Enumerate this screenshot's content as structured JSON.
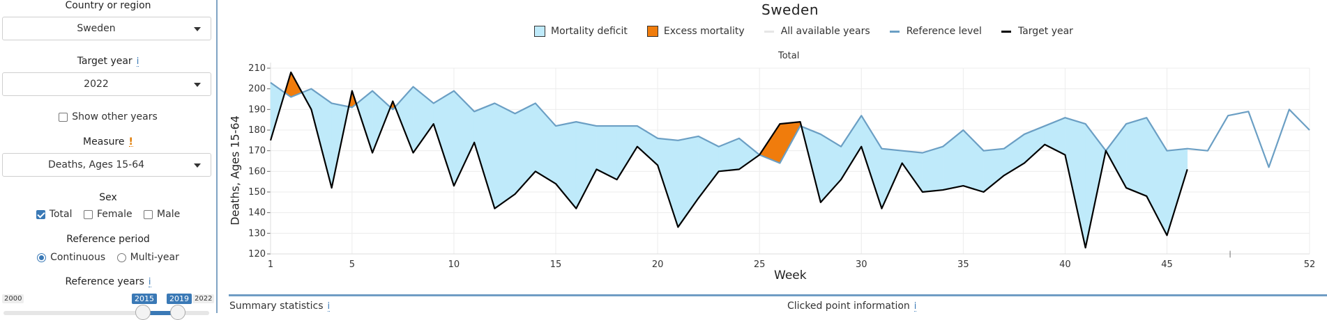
{
  "sidebar": {
    "country_label": "Country or region",
    "country_value": "Sweden",
    "target_year_label": "Target year",
    "target_year_info": "i",
    "target_year_value": "2022",
    "show_other_years_label": "Show other years",
    "show_other_years_checked": false,
    "measure_label": "Measure",
    "measure_warning": "!",
    "measure_value": "Deaths, Ages 15-64",
    "sex_label": "Sex",
    "sex_options": [
      {
        "label": "Total",
        "checked": true
      },
      {
        "label": "Female",
        "checked": false
      },
      {
        "label": "Male",
        "checked": false
      }
    ],
    "reference_period_label": "Reference period",
    "reference_period_options": [
      {
        "label": "Continuous",
        "selected": true
      },
      {
        "label": "Multi-year",
        "selected": false
      }
    ],
    "reference_years_label": "Reference years",
    "reference_years_info": "i",
    "slider": {
      "min": "2000",
      "max": "2022",
      "from": "2015",
      "to": "2019"
    }
  },
  "bottom": {
    "summary_label": "Summary statistics",
    "summary_info": "i",
    "clicked_label": "Clicked point information",
    "clicked_info": "i"
  },
  "colors": {
    "deficit_fill": "#bfeafa",
    "excess_fill": "#f07c0c",
    "reference_line": "#6b9fc4",
    "target_line": "#000000",
    "all_years_swatch": "#e6e6e6"
  },
  "chart_data": {
    "type": "area",
    "title": "Sweden",
    "subtitle": "Total",
    "xlabel": "Week",
    "ylabel": "Deaths, Ages 15-64",
    "xlim": [
      1,
      52
    ],
    "ylim": [
      120,
      210
    ],
    "xticks": [
      "1",
      "5",
      "10",
      "15",
      "20",
      "25",
      "30",
      "35",
      "40",
      "45",
      "52"
    ],
    "yticks": [
      "210",
      "200",
      "190",
      "180",
      "170",
      "160",
      "150",
      "140",
      "130",
      "120"
    ],
    "grid": true,
    "legend": [
      {
        "label": "Mortality deficit",
        "kind": "fill"
      },
      {
        "label": "Excess mortality",
        "kind": "fill"
      },
      {
        "label": "All available years",
        "kind": "line"
      },
      {
        "label": "Reference level",
        "kind": "line"
      },
      {
        "label": "Target year",
        "kind": "line"
      }
    ],
    "legend_position": "top",
    "series": [
      {
        "name": "Reference level",
        "x": [
          1,
          2,
          3,
          4,
          5,
          6,
          7,
          8,
          9,
          10,
          11,
          12,
          13,
          14,
          15,
          16,
          17,
          18,
          19,
          20,
          21,
          22,
          23,
          24,
          25,
          26,
          27,
          28,
          29,
          30,
          31,
          32,
          33,
          34,
          35,
          36,
          37,
          38,
          39,
          40,
          41,
          42,
          43,
          44,
          45,
          46,
          47,
          48,
          49,
          50,
          51,
          52
        ],
        "values": [
          203,
          196,
          200,
          193,
          191,
          199,
          190,
          201,
          193,
          199,
          189,
          193,
          188,
          193,
          182,
          184,
          182,
          182,
          182,
          176,
          175,
          177,
          172,
          176,
          168,
          164,
          182,
          178,
          172,
          187,
          171,
          170,
          169,
          172,
          180,
          170,
          171,
          178,
          182,
          186,
          183,
          170,
          183,
          186,
          170,
          171,
          170,
          187,
          189,
          162,
          190,
          180
        ]
      },
      {
        "name": "Target year",
        "x": [
          1,
          2,
          3,
          4,
          5,
          6,
          7,
          8,
          9,
          10,
          11,
          12,
          13,
          14,
          15,
          16,
          17,
          18,
          19,
          20,
          21,
          22,
          23,
          24,
          25,
          26,
          27,
          28,
          29,
          30,
          31,
          32,
          33,
          34,
          35,
          36,
          37,
          38,
          39,
          40,
          41,
          42,
          43,
          44,
          45,
          46
        ],
        "values": [
          175,
          208,
          190,
          152,
          199,
          169,
          194,
          169,
          183,
          153,
          174,
          142,
          149,
          160,
          154,
          142,
          161,
          156,
          172,
          163,
          133,
          147,
          160,
          161,
          168,
          183,
          184,
          145,
          156,
          172,
          142,
          164,
          150,
          151,
          153,
          150,
          158,
          164,
          173,
          168,
          123,
          170,
          152,
          148,
          129,
          161
        ]
      }
    ],
    "annotations": [
      "|"
    ]
  }
}
